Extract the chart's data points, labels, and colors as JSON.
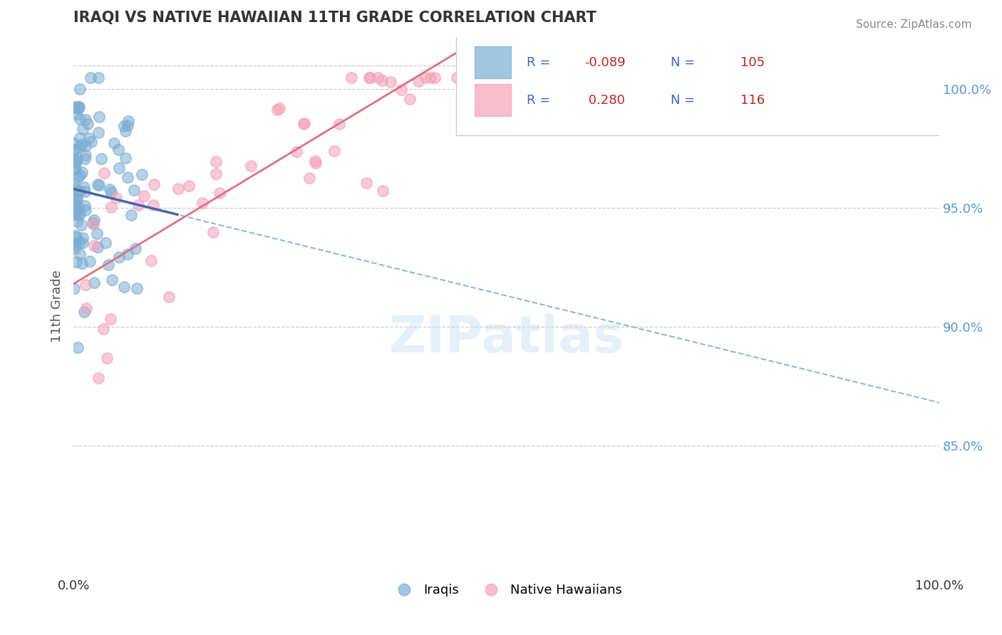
{
  "title": "IRAQI VS NATIVE HAWAIIAN 11TH GRADE CORRELATION CHART",
  "source": "Source: ZipAtlas.com",
  "ylabel": "11th Grade",
  "iraqis_color": "#7badd4",
  "native_hawaiians_color": "#f4a0b8",
  "iraqis_line_color": "#4466aa",
  "native_hawaiians_line_color": "#e07080",
  "dashed_line_color": "#90b8d8",
  "right_yticks": [
    100.0,
    95.0,
    90.0,
    85.0
  ],
  "xlim": [
    0.0,
    1.0
  ],
  "ylim": [
    0.795,
    1.022
  ],
  "watermark": "ZIPatlas",
  "R_iraqi": -0.089,
  "N_iraqi": 105,
  "R_native": 0.28,
  "N_native": 116,
  "iraqi_intercept": 0.958,
  "iraqi_slope": -0.09,
  "native_intercept": 0.918,
  "native_slope": 0.22,
  "background_color": "#ffffff",
  "grid_color": "#cccccc"
}
